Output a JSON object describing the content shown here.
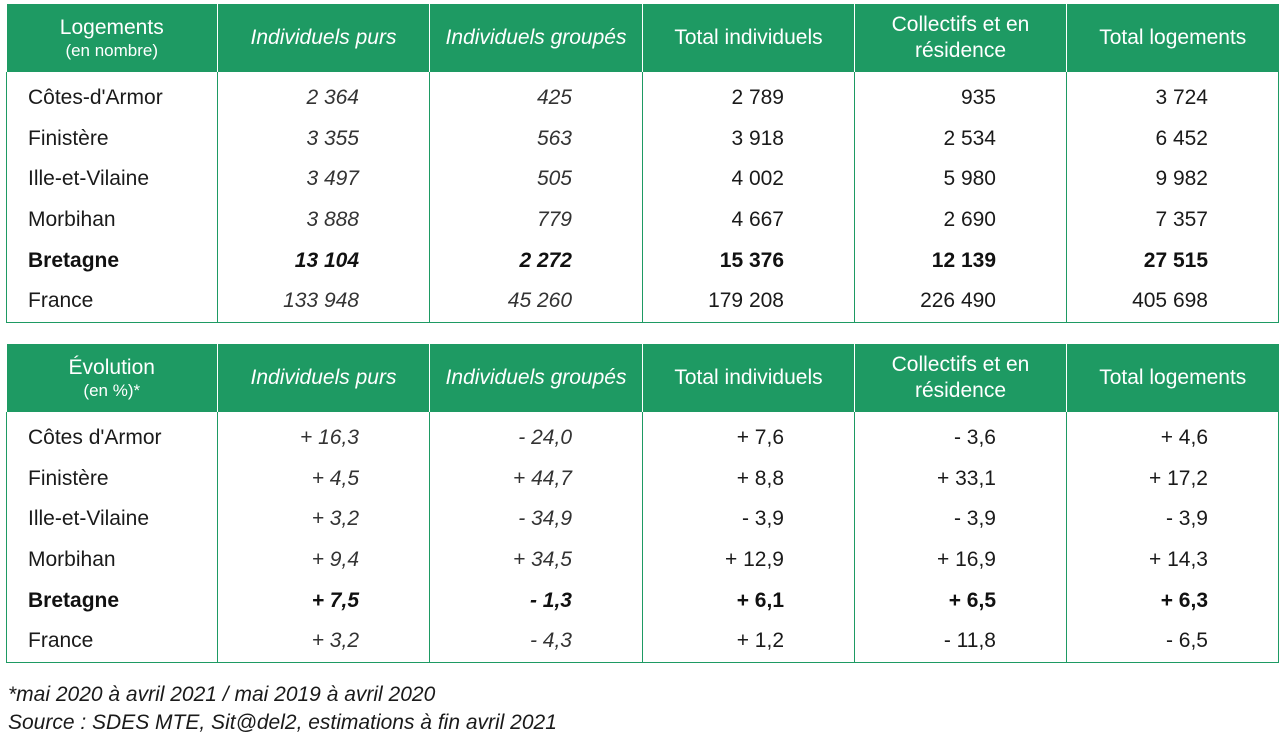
{
  "colors": {
    "header_bg": "#1e9a63",
    "header_text": "#ffffff",
    "border": "#1e9a63"
  },
  "table1": {
    "header": {
      "label": "Logements",
      "sublabel": "(en nombre)",
      "col1": "Individuels purs",
      "col2": "Individuels groupés",
      "col3": "Total individuels",
      "col4": "Collectifs et en résidence",
      "col5": "Total logements"
    },
    "rows": [
      [
        "Côtes-d'Armor",
        "2 364",
        "425",
        "2 789",
        "935",
        "3 724"
      ],
      [
        "Finistère",
        "3 355",
        "563",
        "3 918",
        "2 534",
        "6 452"
      ],
      [
        "Ille-et-Vilaine",
        "3 497",
        "505",
        "4 002",
        "5 980",
        "9 982"
      ],
      [
        "Morbihan",
        "3 888",
        "779",
        "4 667",
        "2 690",
        "7 357"
      ],
      [
        "Bretagne",
        "13 104",
        "2 272",
        "15 376",
        "12 139",
        "27 515"
      ],
      [
        "France",
        "133 948",
        "45 260",
        "179 208",
        "226 490",
        "405 698"
      ]
    ]
  },
  "table2": {
    "header": {
      "label": "Évolution",
      "sublabel": "(en %)*",
      "col1": "Individuels purs",
      "col2": "Individuels groupés",
      "col3": "Total individuels",
      "col4": "Collectifs et en résidence",
      "col5": "Total logements"
    },
    "rows": [
      [
        "Côtes d'Armor",
        "+ 16,3",
        "- 24,0",
        "+ 7,6",
        "- 3,6",
        "+ 4,6"
      ],
      [
        "Finistère",
        "+ 4,5",
        "+ 44,7",
        "+ 8,8",
        "+ 33,1",
        "+ 17,2"
      ],
      [
        "Ille-et-Vilaine",
        "+ 3,2",
        "- 34,9",
        "- 3,9",
        "- 3,9",
        "- 3,9"
      ],
      [
        "Morbihan",
        "+ 9,4",
        "+ 34,5",
        "+ 12,9",
        "+ 16,9",
        "+ 14,3"
      ],
      [
        "Bretagne",
        "+ 7,5",
        "- 1,3",
        "+ 6,1",
        "+ 6,5",
        "+ 6,3"
      ],
      [
        "France",
        "+ 3,2",
        "- 4,3",
        "+ 1,2",
        "- 11,8",
        "- 6,5"
      ]
    ]
  },
  "notes": {
    "footnote": "*mai 2020 à avril 2021 / mai 2019 à avril 2020",
    "source": "Source : SDES MTE, Sit@del2, estimations à fin avril 2021"
  }
}
